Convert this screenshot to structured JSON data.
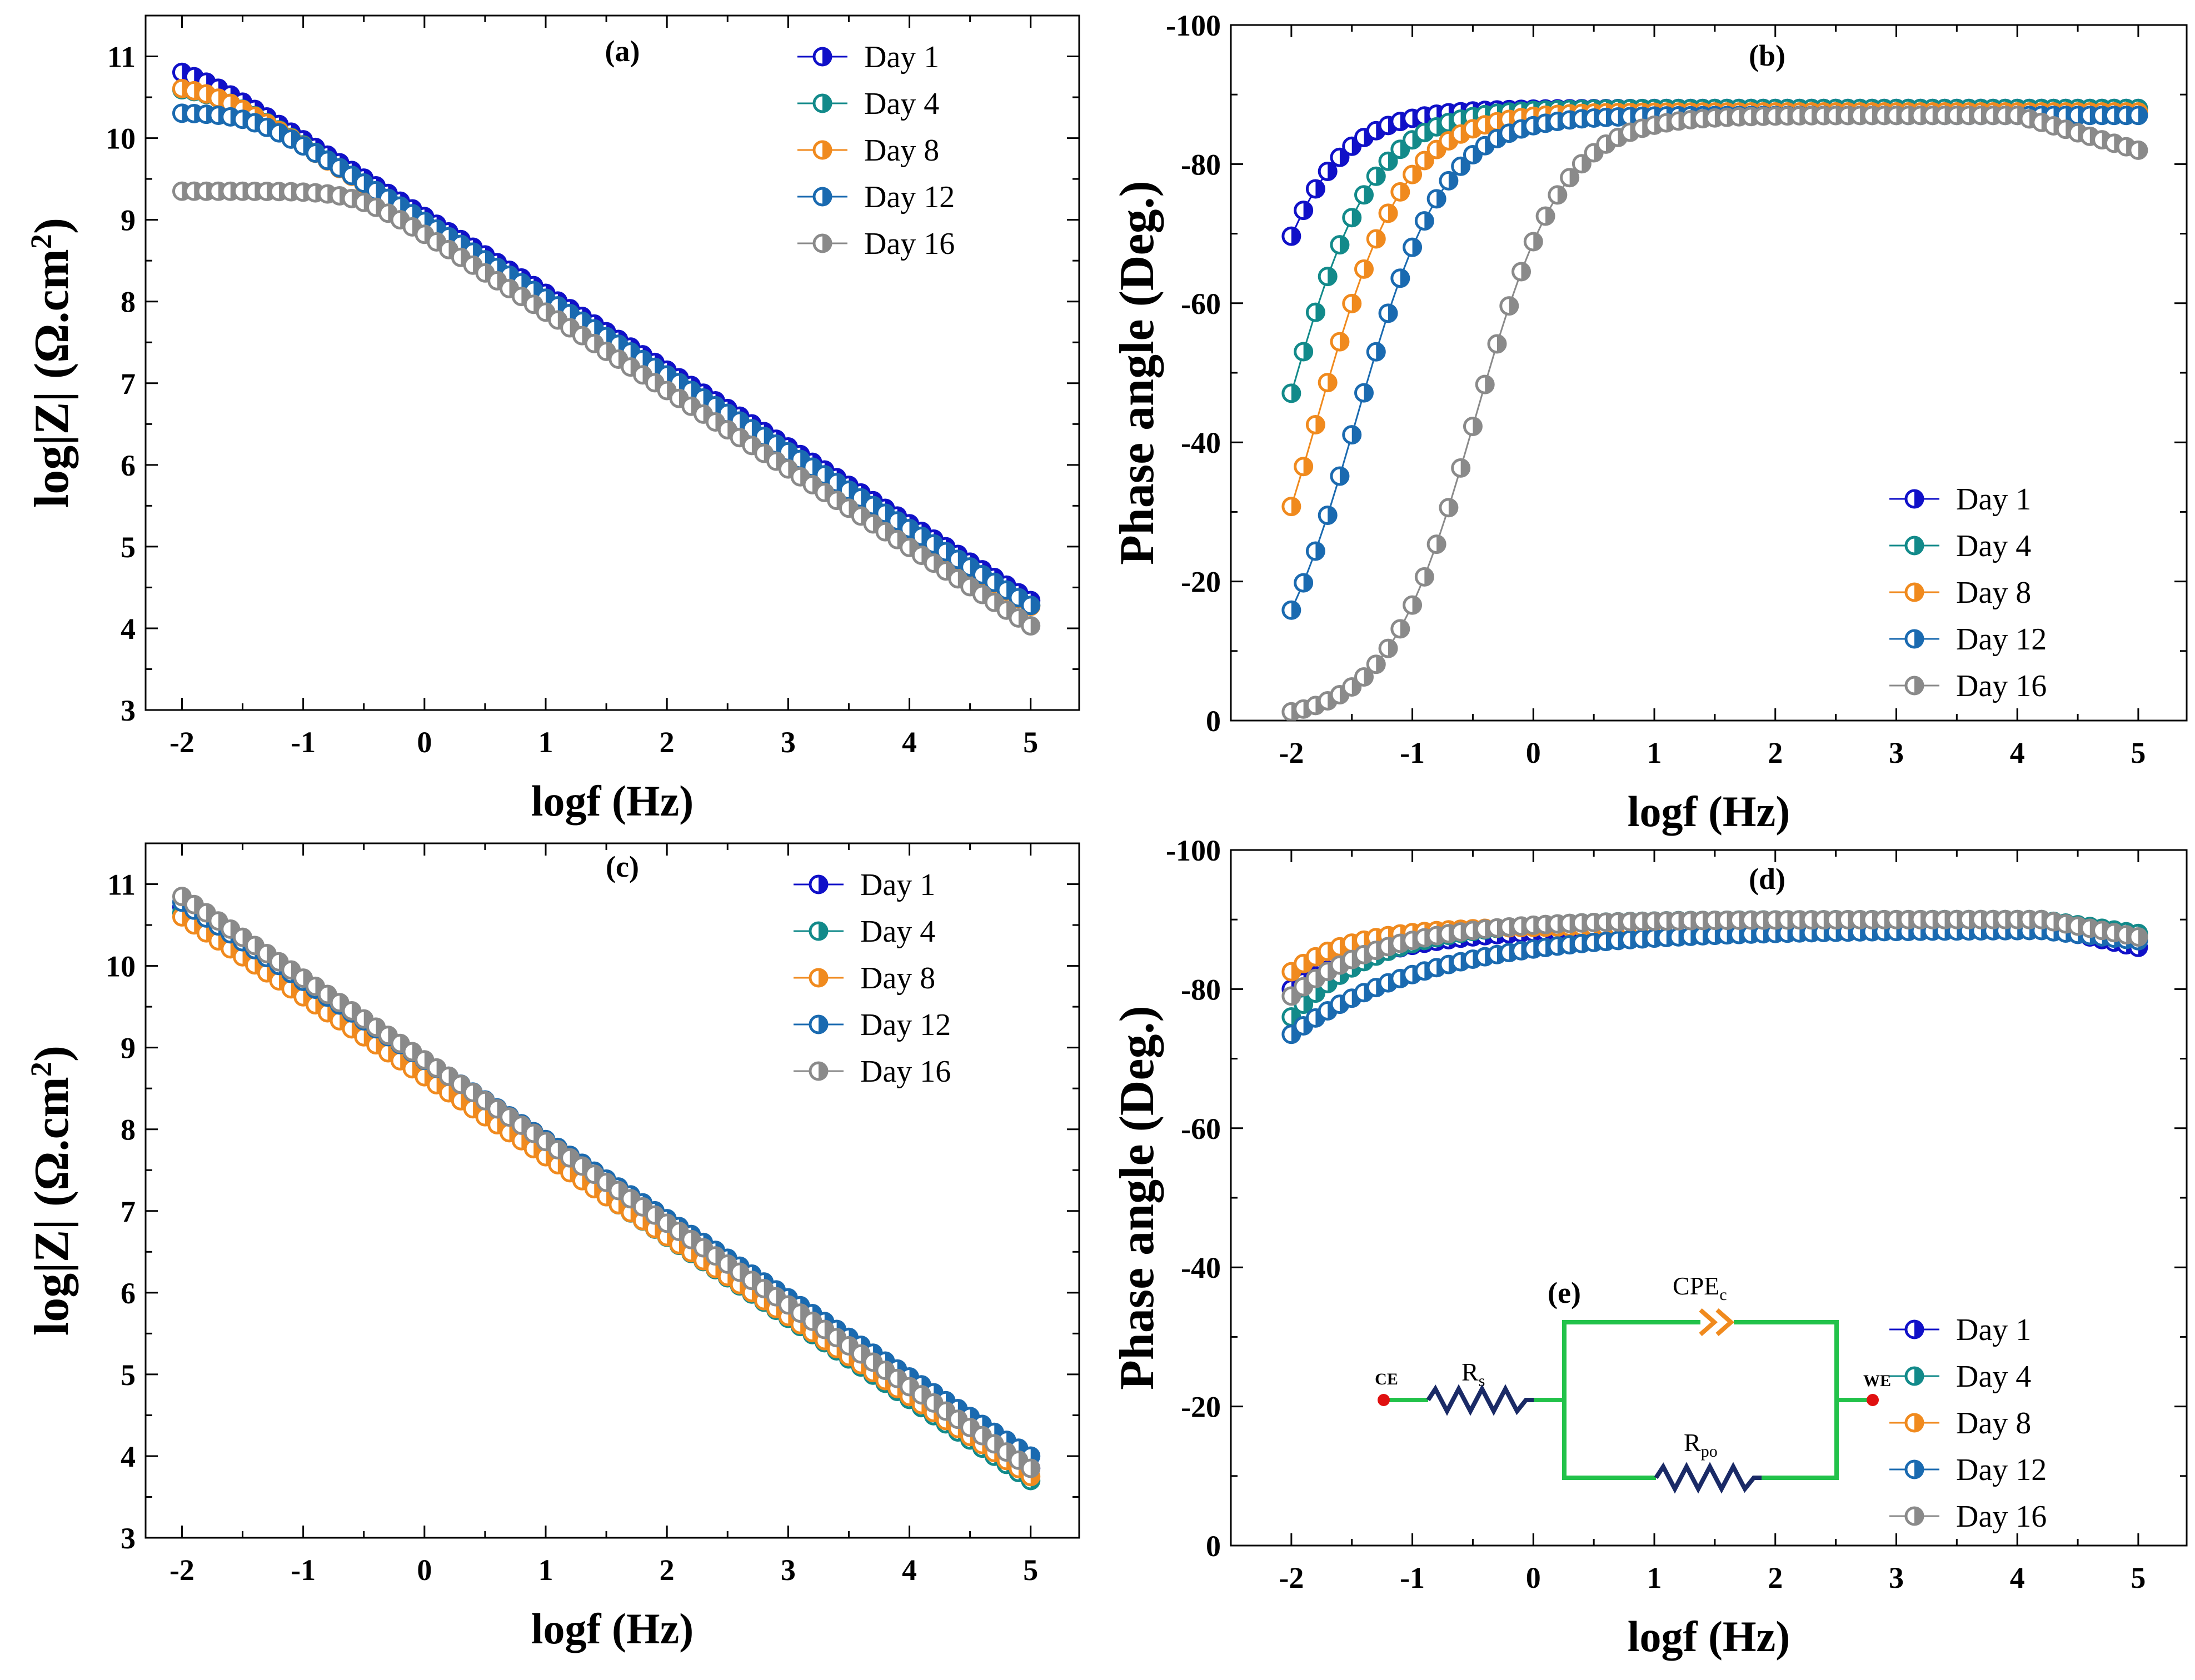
{
  "figure": {
    "panels": [
      {
        "id": "a",
        "label": "(a)"
      },
      {
        "id": "b",
        "label": "(b)"
      },
      {
        "id": "c",
        "label": "(c)"
      },
      {
        "id": "d",
        "label": "(d)"
      }
    ],
    "inset": {
      "label": "(e)",
      "ce_label": "CE",
      "we_label": "WE",
      "rs_label": "R",
      "rs_sub": "s",
      "rpo_label": "R",
      "rpo_sub": "po",
      "cpe_label": "CPE",
      "cpe_sub": "c",
      "wire_color": "#22c24a",
      "resistor_color": "#1a2a66",
      "cpe_color": "#f08a1e",
      "terminal_color": "#e01010"
    }
  },
  "chart_data": [
    {
      "type": "line",
      "panel": "a",
      "title": "(a)",
      "xlabel": "logf (Hz)",
      "ylabel": "log|Z| (Ω.cm",
      "ylabel_sup": "2",
      "ylabel_close": ")",
      "xlim": [
        -2.3,
        5.4
      ],
      "ylim": [
        3,
        11.5
      ],
      "xticks": [
        -2,
        -1,
        0,
        1,
        2,
        3,
        4,
        5
      ],
      "xtick_labels": [
        "-2",
        "-1",
        "0",
        "1",
        "2",
        "3",
        "4",
        "5"
      ],
      "yticks": [
        3,
        4,
        5,
        6,
        7,
        8,
        9,
        10,
        11
      ],
      "ytick_labels": [
        "3",
        "4",
        "5",
        "6",
        "7",
        "8",
        "9",
        "10",
        "11"
      ],
      "legend_position": "top-right",
      "x": {
        "start": -2,
        "end": 5,
        "step": 0.1
      },
      "series": [
        {
          "name": "Day 1",
          "color": "#1010c8",
          "model": "impedance",
          "high_log": 10.92,
          "slope": -0.94,
          "intercept": 9.04
        },
        {
          "name": "Day 4",
          "color": "#128a8a",
          "model": "impedance",
          "high_log": 10.63,
          "slope": -0.94,
          "intercept": 8.98
        },
        {
          "name": "Day 8",
          "color": "#f08a1e",
          "model": "impedance",
          "high_log": 10.65,
          "slope": -0.94,
          "intercept": 8.97
        },
        {
          "name": "Day 12",
          "color": "#1a6ab0",
          "model": "impedance",
          "high_log": 10.31,
          "slope": -0.94,
          "intercept": 8.98
        },
        {
          "name": "Day 16",
          "color": "#8a8a8a",
          "model": "impedance",
          "high_log": 9.35,
          "slope": -0.96,
          "intercept": 8.83
        }
      ]
    },
    {
      "type": "line",
      "panel": "b",
      "title": "(b)",
      "xlabel": "logf (Hz)",
      "ylabel": "Phase angle (Deg.)",
      "xlim": [
        -2.5,
        5.4
      ],
      "ylim": [
        0,
        -100
      ],
      "xticks": [
        -2,
        -1,
        0,
        1,
        2,
        3,
        4,
        5
      ],
      "xtick_labels": [
        "-2",
        "-1",
        "0",
        "1",
        "2",
        "3",
        "4",
        "5"
      ],
      "yticks": [
        0,
        -20,
        -40,
        -60,
        -80,
        -100
      ],
      "ytick_labels": [
        "0",
        "-20",
        "-40",
        "-60",
        "-80",
        "-100"
      ],
      "legend_position": "bottom-right",
      "x": {
        "start": -2,
        "end": 5,
        "step": 0.1
      },
      "series": [
        {
          "name": "Day 1",
          "color": "#1010c8",
          "model": "phase",
          "plateau": -88,
          "knee": -2.48,
          "width": 0.36,
          "tail": 0
        },
        {
          "name": "Day 4",
          "color": "#128a8a",
          "model": "phase",
          "plateau": -88,
          "knee": -2.05,
          "width": 0.36,
          "tail": 0
        },
        {
          "name": "Day 8",
          "color": "#f08a1e",
          "model": "phase",
          "plateau": -87.5,
          "knee": -1.78,
          "width": 0.36,
          "tail": 0
        },
        {
          "name": "Day 12",
          "color": "#1a6ab0",
          "model": "phase",
          "plateau": -87,
          "knee": -1.46,
          "width": 0.36,
          "tail": 0
        },
        {
          "name": "Day 16",
          "color": "#8a8a8a",
          "model": "phase",
          "plateau": -87,
          "knee": -0.48,
          "width": 0.36,
          "tail": 5
        }
      ]
    },
    {
      "type": "line",
      "panel": "c",
      "title": "(c)",
      "xlabel": "logf (Hz)",
      "ylabel": "log|Z| (Ω.cm",
      "ylabel_sup": "2",
      "ylabel_close": ")",
      "xlim": [
        -2.3,
        5.4
      ],
      "ylim": [
        3,
        11.5
      ],
      "xticks": [
        -2,
        -1,
        0,
        1,
        2,
        3,
        4,
        5
      ],
      "xtick_labels": [
        "-2",
        "-1",
        "0",
        "1",
        "2",
        "3",
        "4",
        "5"
      ],
      "yticks": [
        3,
        4,
        5,
        6,
        7,
        8,
        9,
        10,
        11
      ],
      "ytick_labels": [
        "3",
        "4",
        "5",
        "6",
        "7",
        "8",
        "9",
        "10",
        "11"
      ],
      "legend_position": "top-right",
      "x": {
        "start": -2,
        "end": 5,
        "step": 0.1
      },
      "series": [
        {
          "name": "Day 1",
          "color": "#1010c8",
          "model": "linear",
          "y0": 10.72,
          "y1": 3.85
        },
        {
          "name": "Day 4",
          "color": "#128a8a",
          "model": "linear",
          "y0": 10.65,
          "y1": 3.7
        },
        {
          "name": "Day 8",
          "color": "#f08a1e",
          "model": "linear",
          "y0": 10.6,
          "y1": 3.75
        },
        {
          "name": "Day 12",
          "color": "#1a6ab0",
          "model": "linear",
          "y0": 10.78,
          "y1": 4.0
        },
        {
          "name": "Day 16",
          "color": "#8a8a8a",
          "model": "linear",
          "y0": 10.85,
          "y1": 3.85
        }
      ]
    },
    {
      "type": "line",
      "panel": "d",
      "title": "(d)",
      "xlabel": "logf (Hz)",
      "ylabel": "Phase angle (Deg.)",
      "xlim": [
        -2.5,
        5.4
      ],
      "ylim": [
        0,
        -100
      ],
      "xticks": [
        -2,
        -1,
        0,
        1,
        2,
        3,
        4,
        5
      ],
      "xtick_labels": [
        "-2",
        "-1",
        "0",
        "1",
        "2",
        "3",
        "4",
        "5"
      ],
      "yticks": [
        0,
        -20,
        -40,
        -60,
        -80,
        -100
      ],
      "ytick_labels": [
        "0",
        "-20",
        "-40",
        "-60",
        "-80",
        "-100"
      ],
      "legend_position": "bottom-right",
      "x": {
        "start": -2,
        "end": 5,
        "step": 0.1
      },
      "series": [
        {
          "name": "Day 1",
          "color": "#1010c8",
          "model": "plateau",
          "start": -80,
          "plateau": -89,
          "rate": 1.2,
          "end": -86
        },
        {
          "name": "Day 4",
          "color": "#128a8a",
          "model": "plateau",
          "start": -76,
          "plateau": -90,
          "rate": 1.4,
          "end": -88
        },
        {
          "name": "Day 8",
          "color": "#f08a1e",
          "model": "plateau",
          "start": -82.5,
          "plateau": -89,
          "rate": 2.0,
          "end": -87
        },
        {
          "name": "Day 12",
          "color": "#1a6ab0",
          "model": "plateau",
          "start": -73.5,
          "plateau": -88.5,
          "rate": 0.85,
          "end": -87
        },
        {
          "name": "Day 16",
          "color": "#8a8a8a",
          "model": "plateau",
          "start": -79,
          "plateau": -90,
          "rate": 1.3,
          "end": -87.5
        }
      ]
    }
  ]
}
